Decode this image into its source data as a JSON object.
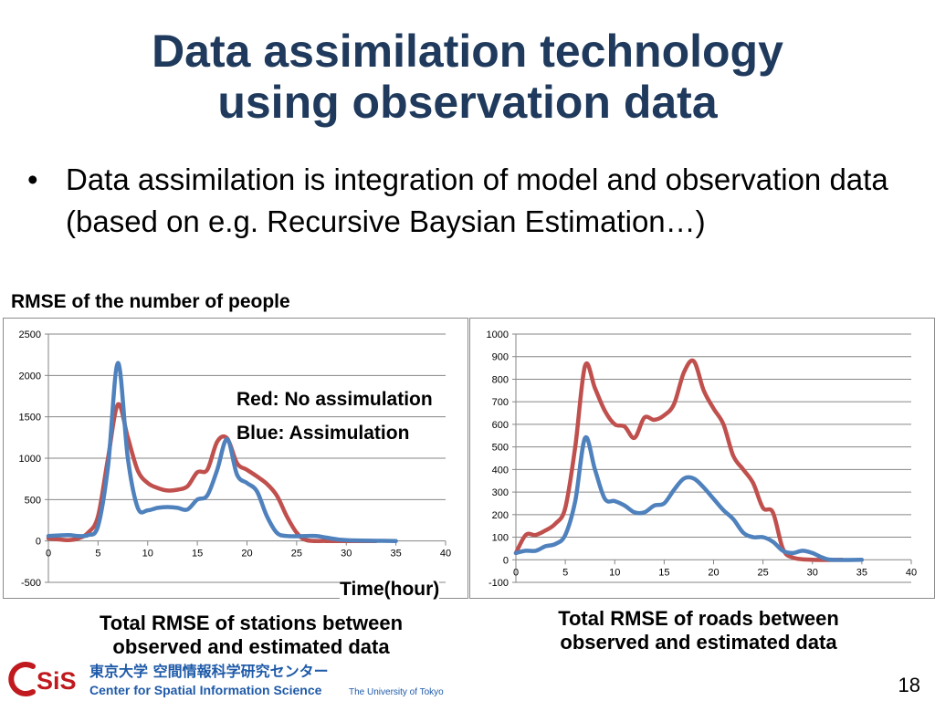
{
  "slide": {
    "title_line1": "Data assimilation technology",
    "title_line2": "using observation data",
    "bullet_symbol": "•",
    "bullet_text": "Data assimilation is integration of model and observation data (based on e.g. Recursive Baysian Estimation…)",
    "rmse_label": "RMSE of the number of people",
    "legend_red": "Red: No assimulation",
    "legend_blue": "Blue: Assimulation",
    "time_label": "Time(hour)",
    "caption_left_line1": "Total RMSE of stations between",
    "caption_left_line2": "observed and estimated data",
    "caption_right_line1": "Total RMSE of roads between",
    "caption_right_line2": "observed and estimated data",
    "page_number": "18",
    "logo_jp": "東京大学 空間情報科学研究センター",
    "logo_en": "Center for Spatial Information Science",
    "logo_en_small": "The University of Tokyo",
    "colors": {
      "title": "#1f3a5c",
      "red": "#c0504d",
      "blue": "#4f81bd",
      "logo_red": "#c0191e",
      "logo_blue": "#1e5aa8"
    }
  },
  "chart_data": [
    {
      "type": "line",
      "xlim": [
        0,
        40
      ],
      "ylim": [
        -500,
        2500
      ],
      "xticks": [
        0,
        5,
        10,
        15,
        20,
        25,
        30,
        35,
        40
      ],
      "yticks": [
        -500,
        0,
        500,
        1000,
        1500,
        2000,
        2500
      ],
      "grid": true,
      "series": [
        {
          "name": "No assimulation",
          "color": "#c0504d",
          "points": [
            [
              0,
              30
            ],
            [
              1,
              20
            ],
            [
              2,
              10
            ],
            [
              3,
              30
            ],
            [
              4,
              100
            ],
            [
              5,
              300
            ],
            [
              6,
              1000
            ],
            [
              7,
              1650
            ],
            [
              8,
              1250
            ],
            [
              9,
              850
            ],
            [
              10,
              700
            ],
            [
              11,
              640
            ],
            [
              12,
              610
            ],
            [
              13,
              620
            ],
            [
              14,
              660
            ],
            [
              15,
              830
            ],
            [
              16,
              860
            ],
            [
              17,
              1200
            ],
            [
              18,
              1240
            ],
            [
              19,
              940
            ],
            [
              20,
              860
            ],
            [
              21,
              780
            ],
            [
              22,
              690
            ],
            [
              23,
              550
            ],
            [
              24,
              300
            ],
            [
              25,
              100
            ],
            [
              26,
              10
            ],
            [
              28,
              0
            ],
            [
              30,
              0
            ],
            [
              33,
              0
            ]
          ]
        },
        {
          "name": "Assimulation",
          "color": "#4f81bd",
          "points": [
            [
              0,
              60
            ],
            [
              2,
              70
            ],
            [
              3,
              60
            ],
            [
              4,
              70
            ],
            [
              5,
              180
            ],
            [
              6,
              900
            ],
            [
              7,
              2150
            ],
            [
              8,
              1000
            ],
            [
              9,
              400
            ],
            [
              10,
              370
            ],
            [
              11,
              400
            ],
            [
              12,
              410
            ],
            [
              13,
              400
            ],
            [
              14,
              380
            ],
            [
              15,
              500
            ],
            [
              16,
              550
            ],
            [
              17,
              860
            ],
            [
              18,
              1230
            ],
            [
              19,
              800
            ],
            [
              20,
              700
            ],
            [
              21,
              600
            ],
            [
              22,
              300
            ],
            [
              23,
              100
            ],
            [
              24,
              60
            ],
            [
              26,
              60
            ],
            [
              27,
              60
            ],
            [
              28,
              40
            ],
            [
              30,
              10
            ],
            [
              35,
              0
            ]
          ]
        }
      ]
    },
    {
      "type": "line",
      "xlim": [
        0,
        40
      ],
      "ylim": [
        -100,
        1000
      ],
      "xticks": [
        0,
        5,
        10,
        15,
        20,
        25,
        30,
        35,
        40
      ],
      "yticks": [
        -100,
        0,
        100,
        200,
        300,
        400,
        500,
        600,
        700,
        800,
        900,
        1000
      ],
      "grid": true,
      "series": [
        {
          "name": "No assimulation",
          "color": "#c0504d",
          "points": [
            [
              0,
              30
            ],
            [
              1,
              110
            ],
            [
              2,
              110
            ],
            [
              3,
              130
            ],
            [
              4,
              160
            ],
            [
              5,
              230
            ],
            [
              6,
              500
            ],
            [
              7,
              860
            ],
            [
              8,
              760
            ],
            [
              9,
              660
            ],
            [
              10,
              600
            ],
            [
              11,
              590
            ],
            [
              12,
              540
            ],
            [
              13,
              630
            ],
            [
              14,
              620
            ],
            [
              15,
              640
            ],
            [
              16,
              690
            ],
            [
              17,
              830
            ],
            [
              18,
              880
            ],
            [
              19,
              750
            ],
            [
              20,
              670
            ],
            [
              21,
              600
            ],
            [
              22,
              460
            ],
            [
              23,
              400
            ],
            [
              24,
              340
            ],
            [
              25,
              230
            ],
            [
              26,
              210
            ],
            [
              27,
              50
            ],
            [
              28,
              10
            ],
            [
              30,
              0
            ],
            [
              33,
              0
            ]
          ]
        },
        {
          "name": "Assimulation",
          "color": "#4f81bd",
          "points": [
            [
              0,
              30
            ],
            [
              1,
              40
            ],
            [
              2,
              40
            ],
            [
              3,
              60
            ],
            [
              4,
              70
            ],
            [
              5,
              110
            ],
            [
              6,
              260
            ],
            [
              7,
              540
            ],
            [
              8,
              400
            ],
            [
              9,
              270
            ],
            [
              10,
              260
            ],
            [
              11,
              240
            ],
            [
              12,
              210
            ],
            [
              13,
              210
            ],
            [
              14,
              240
            ],
            [
              15,
              250
            ],
            [
              16,
              310
            ],
            [
              17,
              360
            ],
            [
              18,
              360
            ],
            [
              19,
              320
            ],
            [
              20,
              270
            ],
            [
              21,
              220
            ],
            [
              22,
              180
            ],
            [
              23,
              120
            ],
            [
              24,
              100
            ],
            [
              25,
              100
            ],
            [
              26,
              80
            ],
            [
              27,
              40
            ],
            [
              28,
              30
            ],
            [
              29,
              40
            ],
            [
              30,
              30
            ],
            [
              31,
              10
            ],
            [
              32,
              0
            ],
            [
              35,
              0
            ]
          ]
        }
      ]
    }
  ]
}
